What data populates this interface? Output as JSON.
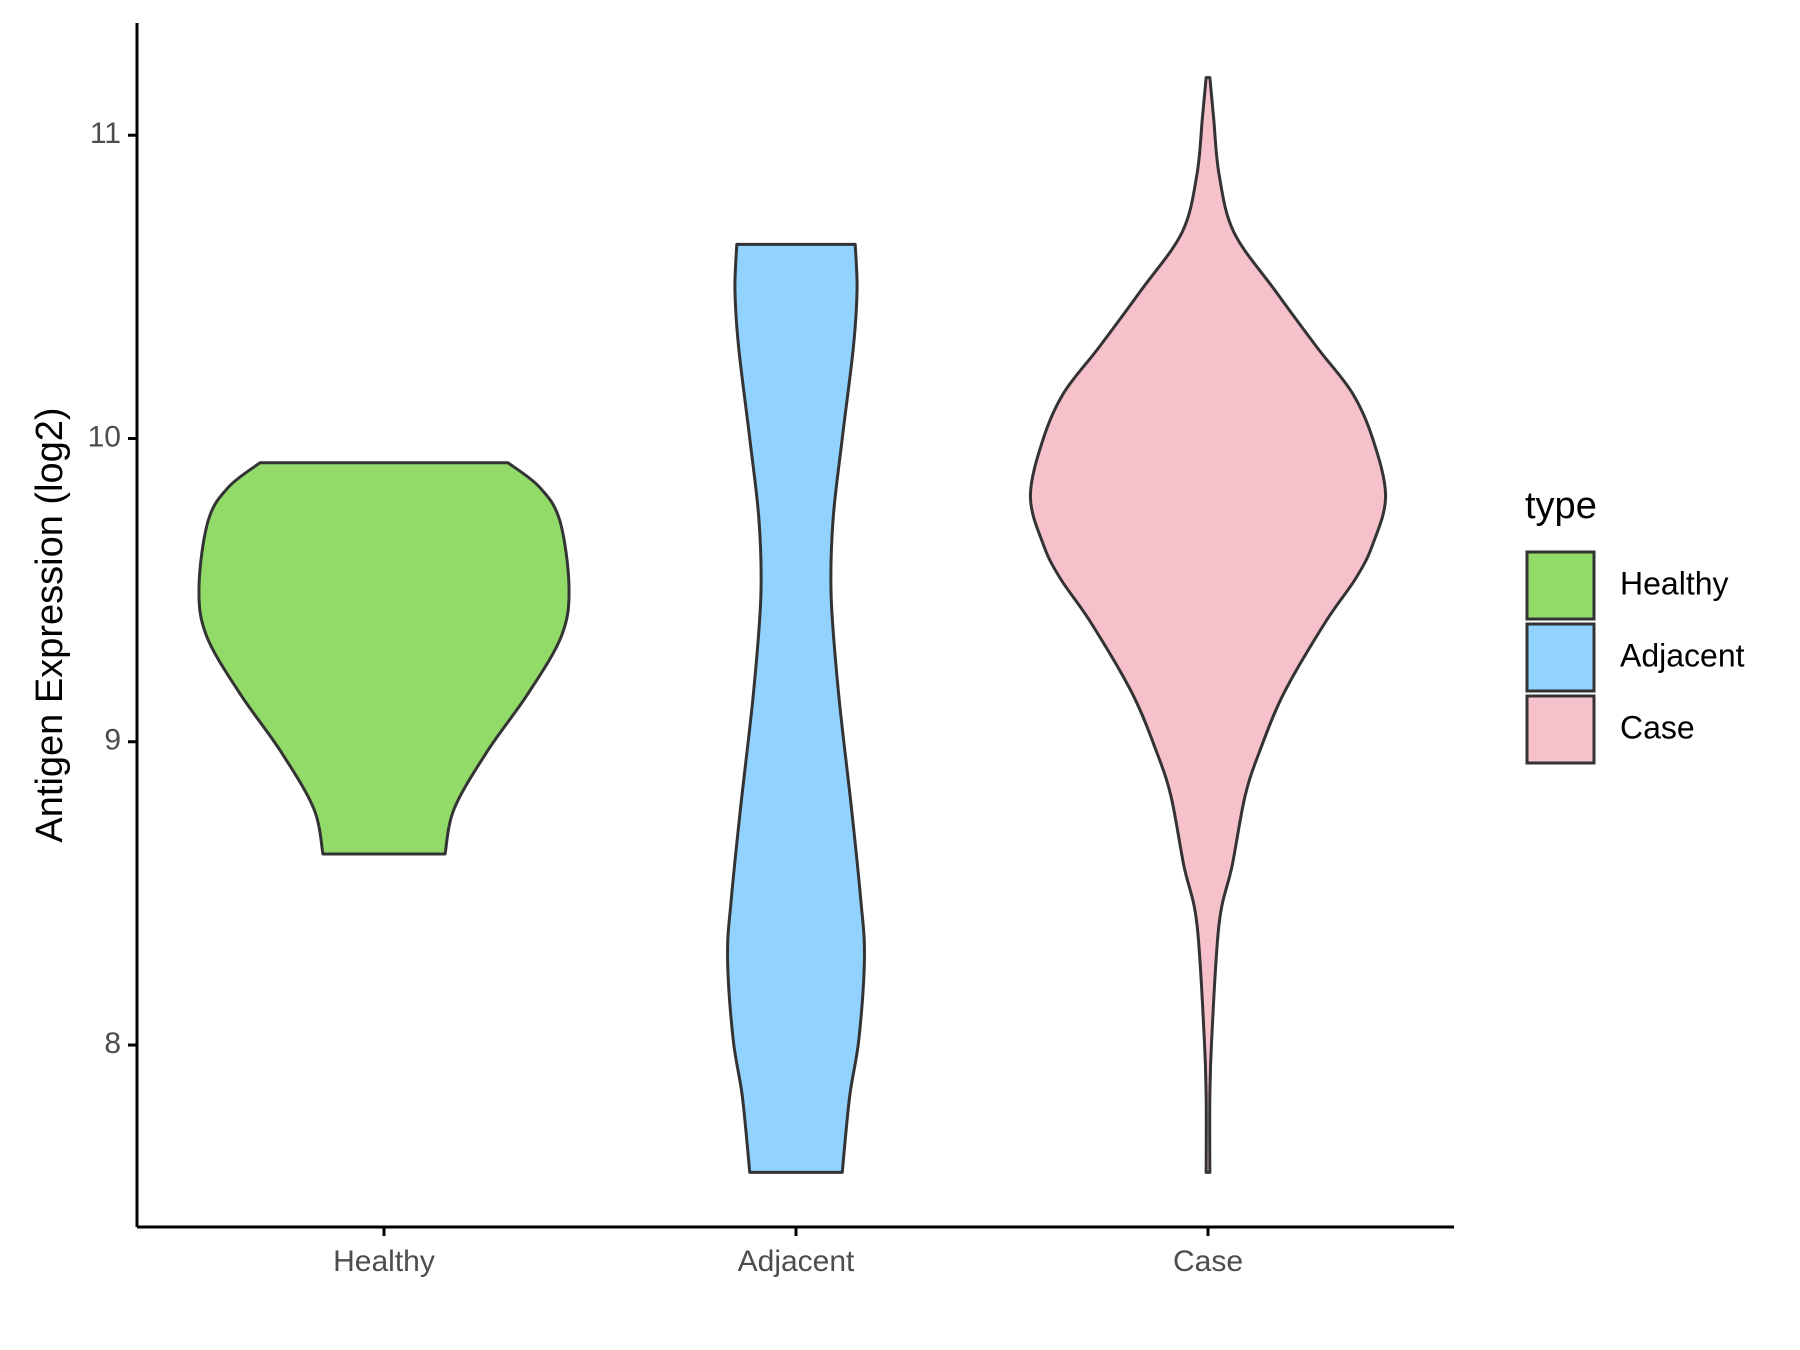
{
  "chart_data": {
    "type": "violin",
    "y_label": "Antigen Expression (log2)",
    "categories": [
      "Healthy",
      "Adjacent",
      "Case"
    ],
    "legend_title": "type",
    "legend_position": "right",
    "ylim": [
      7.4,
      11.37
    ],
    "yticks": [
      8,
      9,
      10,
      11
    ],
    "series": [
      {
        "name": "Healthy",
        "color": "#93DB69",
        "y": [
          9.92,
          9.84,
          9.73,
          9.51,
          9.35,
          9.16,
          8.97,
          8.78,
          8.63
        ],
        "density": [
          0.67,
          0.84,
          0.95,
          1.0,
          0.96,
          0.78,
          0.56,
          0.38,
          0.33
        ]
      },
      {
        "name": "Adjacent",
        "color": "#92D2FF",
        "y": [
          10.64,
          10.49,
          10.3,
          10.0,
          9.73,
          9.48,
          9.16,
          8.78,
          8.48,
          8.29,
          8.02,
          7.83,
          7.58
        ],
        "density": [
          0.32,
          0.33,
          0.31,
          0.25,
          0.2,
          0.19,
          0.23,
          0.3,
          0.35,
          0.37,
          0.34,
          0.29,
          0.25
        ]
      },
      {
        "name": "Case",
        "color": "#F7C1CC",
        "y": [
          11.19,
          11.06,
          10.87,
          10.68,
          10.49,
          10.3,
          10.15,
          10.0,
          9.81,
          9.65,
          9.54,
          9.39,
          9.16,
          8.97,
          8.82,
          8.59,
          8.4,
          8.02,
          7.83,
          7.58
        ],
        "density": [
          0.01,
          0.03,
          0.06,
          0.14,
          0.36,
          0.59,
          0.78,
          0.89,
          0.96,
          0.89,
          0.8,
          0.63,
          0.41,
          0.28,
          0.2,
          0.13,
          0.06,
          0.02,
          0.01,
          0.01
        ]
      }
    ]
  }
}
